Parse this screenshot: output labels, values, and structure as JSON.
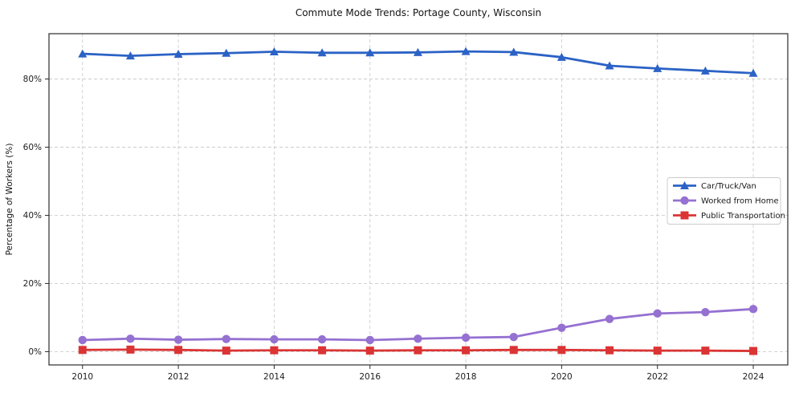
{
  "page": {
    "background": "#ffffff"
  },
  "chart_data": {
    "type": "line",
    "title": "Commute Mode Trends: Portage County, Wisconsin",
    "xlabel": "",
    "ylabel": "Percentage of Workers (%)",
    "x": [
      2010,
      2011,
      2012,
      2013,
      2014,
      2015,
      2016,
      2017,
      2018,
      2019,
      2020,
      2021,
      2022,
      2023,
      2024
    ],
    "series": [
      {
        "name": "Car/Truck/Van",
        "color": "#2b62c5",
        "marker": "triangle",
        "values": [
          87.4,
          86.8,
          87.3,
          87.6,
          88.0,
          87.7,
          87.7,
          87.8,
          88.1,
          87.9,
          86.4,
          83.9,
          83.1,
          82.4,
          81.7
        ]
      },
      {
        "name": "Worked from Home",
        "color": "#9571d1",
        "marker": "circle",
        "values": [
          3.4,
          3.8,
          3.5,
          3.7,
          3.6,
          3.6,
          3.4,
          3.8,
          4.1,
          4.3,
          7.0,
          9.6,
          11.2,
          11.6,
          12.5
        ]
      },
      {
        "name": "Public Transportation",
        "color": "#db3434",
        "marker": "square",
        "values": [
          0.5,
          0.6,
          0.5,
          0.3,
          0.4,
          0.4,
          0.3,
          0.4,
          0.4,
          0.5,
          0.5,
          0.4,
          0.3,
          0.3,
          0.2
        ]
      }
    ],
    "xticks": [
      2010,
      2012,
      2014,
      2016,
      2018,
      2020,
      2022,
      2024
    ],
    "xtick_labels": [
      "2010",
      "2012",
      "2014",
      "2016",
      "2018",
      "2020",
      "2022",
      "2024"
    ],
    "yticks": [
      0,
      20,
      40,
      60,
      80
    ],
    "ytick_labels": [
      "0%",
      "20%",
      "40%",
      "60%",
      "80%"
    ],
    "xlim": [
      2009.3,
      2024.72
    ],
    "ylim": [
      -3.9,
      93.3
    ],
    "grid": true,
    "legend_position": "center-right"
  },
  "style": {
    "grid_color": "#cccccc",
    "spine_color": "#2b2b2b",
    "tick_color": "#2b2b2b",
    "legend_border_color": "#cccccc",
    "legend_background": "#ffffff"
  }
}
